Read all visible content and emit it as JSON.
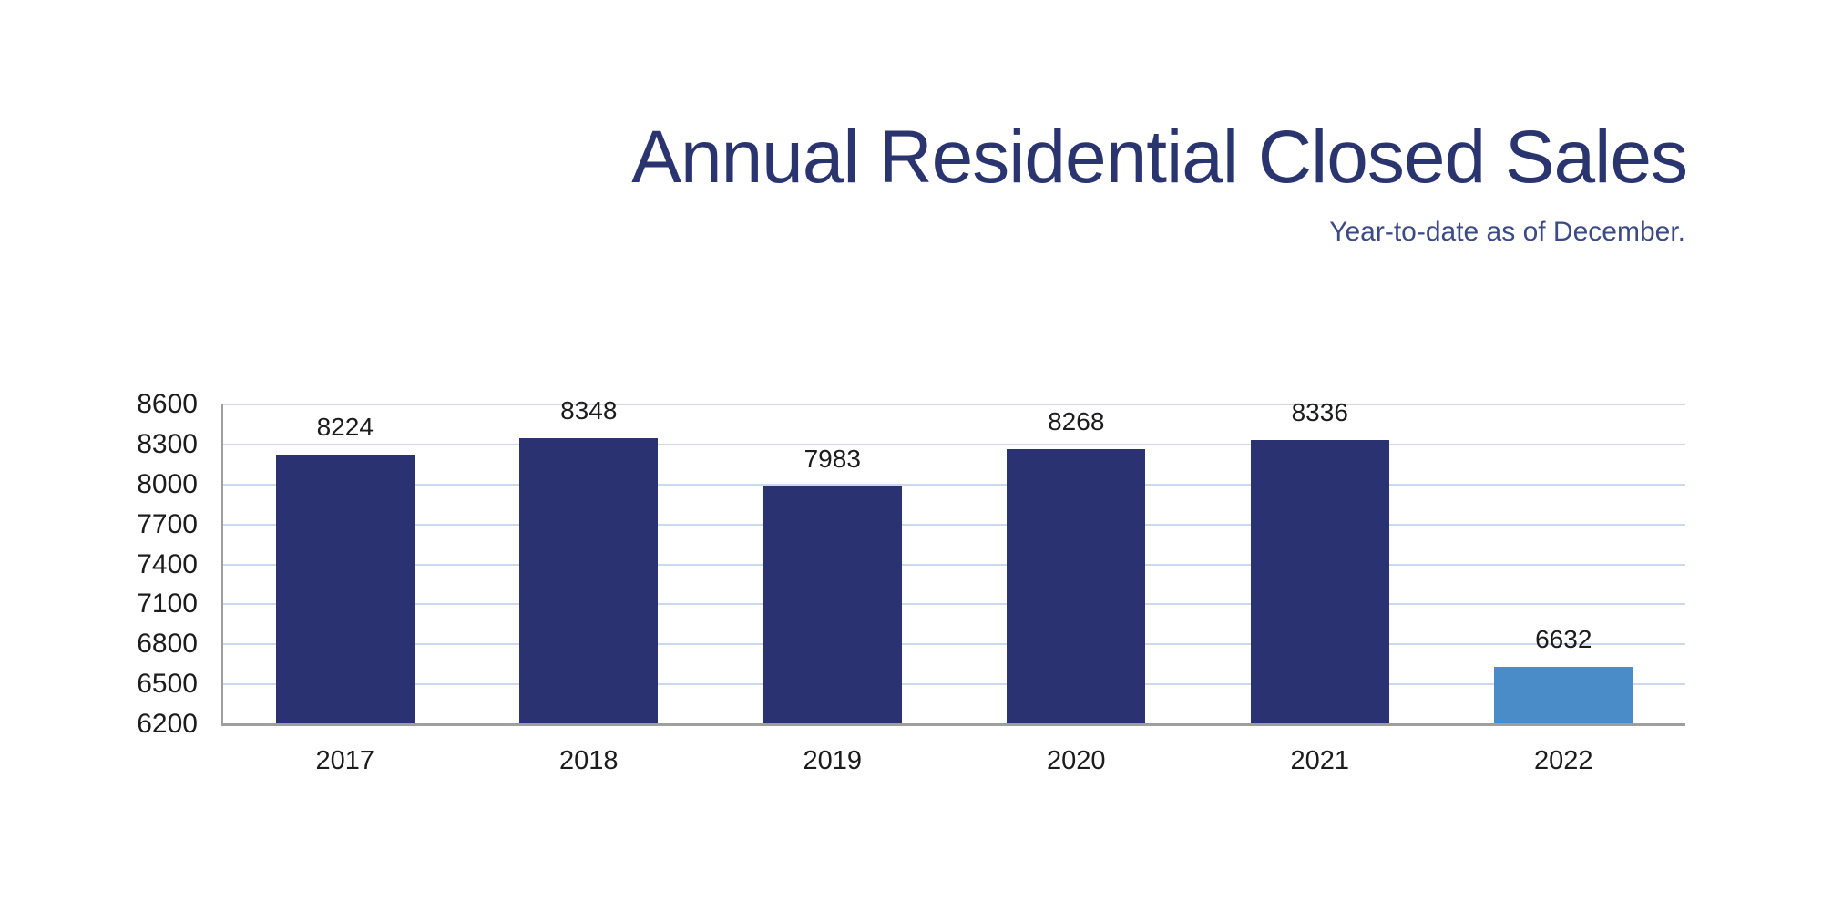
{
  "header": {
    "title": "Annual Residential Closed Sales",
    "subtitle": "Year-to-date as of December."
  },
  "chart_data": {
    "type": "bar",
    "title": "Annual Residential Closed Sales",
    "subtitle": "Year-to-date as of December.",
    "categories": [
      "2017",
      "2018",
      "2019",
      "2020",
      "2021",
      "2022"
    ],
    "values": [
      8224,
      8348,
      7983,
      8268,
      8336,
      6632
    ],
    "bar_colors": [
      "#2a3272",
      "#2a3272",
      "#2a3272",
      "#2a3272",
      "#2a3272",
      "#4a8cc8"
    ],
    "data_labels": [
      8224,
      8348,
      7983,
      8268,
      8336,
      6632
    ],
    "xlabel": "",
    "ylabel": "",
    "ylim": [
      6200,
      8600
    ],
    "ytick_step": 300,
    "yticks": [
      6200,
      6500,
      6800,
      7100,
      7400,
      7700,
      8000,
      8300,
      8600
    ],
    "grid": true,
    "legend": false
  },
  "colors": {
    "bar_primary": "#2a3272",
    "bar_highlight": "#4a8cc8",
    "title_text": "#2a346e",
    "subtitle_text": "#3d4b85",
    "axis_text": "#1c1c1c",
    "gridline": "#ccd9ed",
    "axis_line": "#9e9e9e",
    "background": "#ffffff"
  }
}
